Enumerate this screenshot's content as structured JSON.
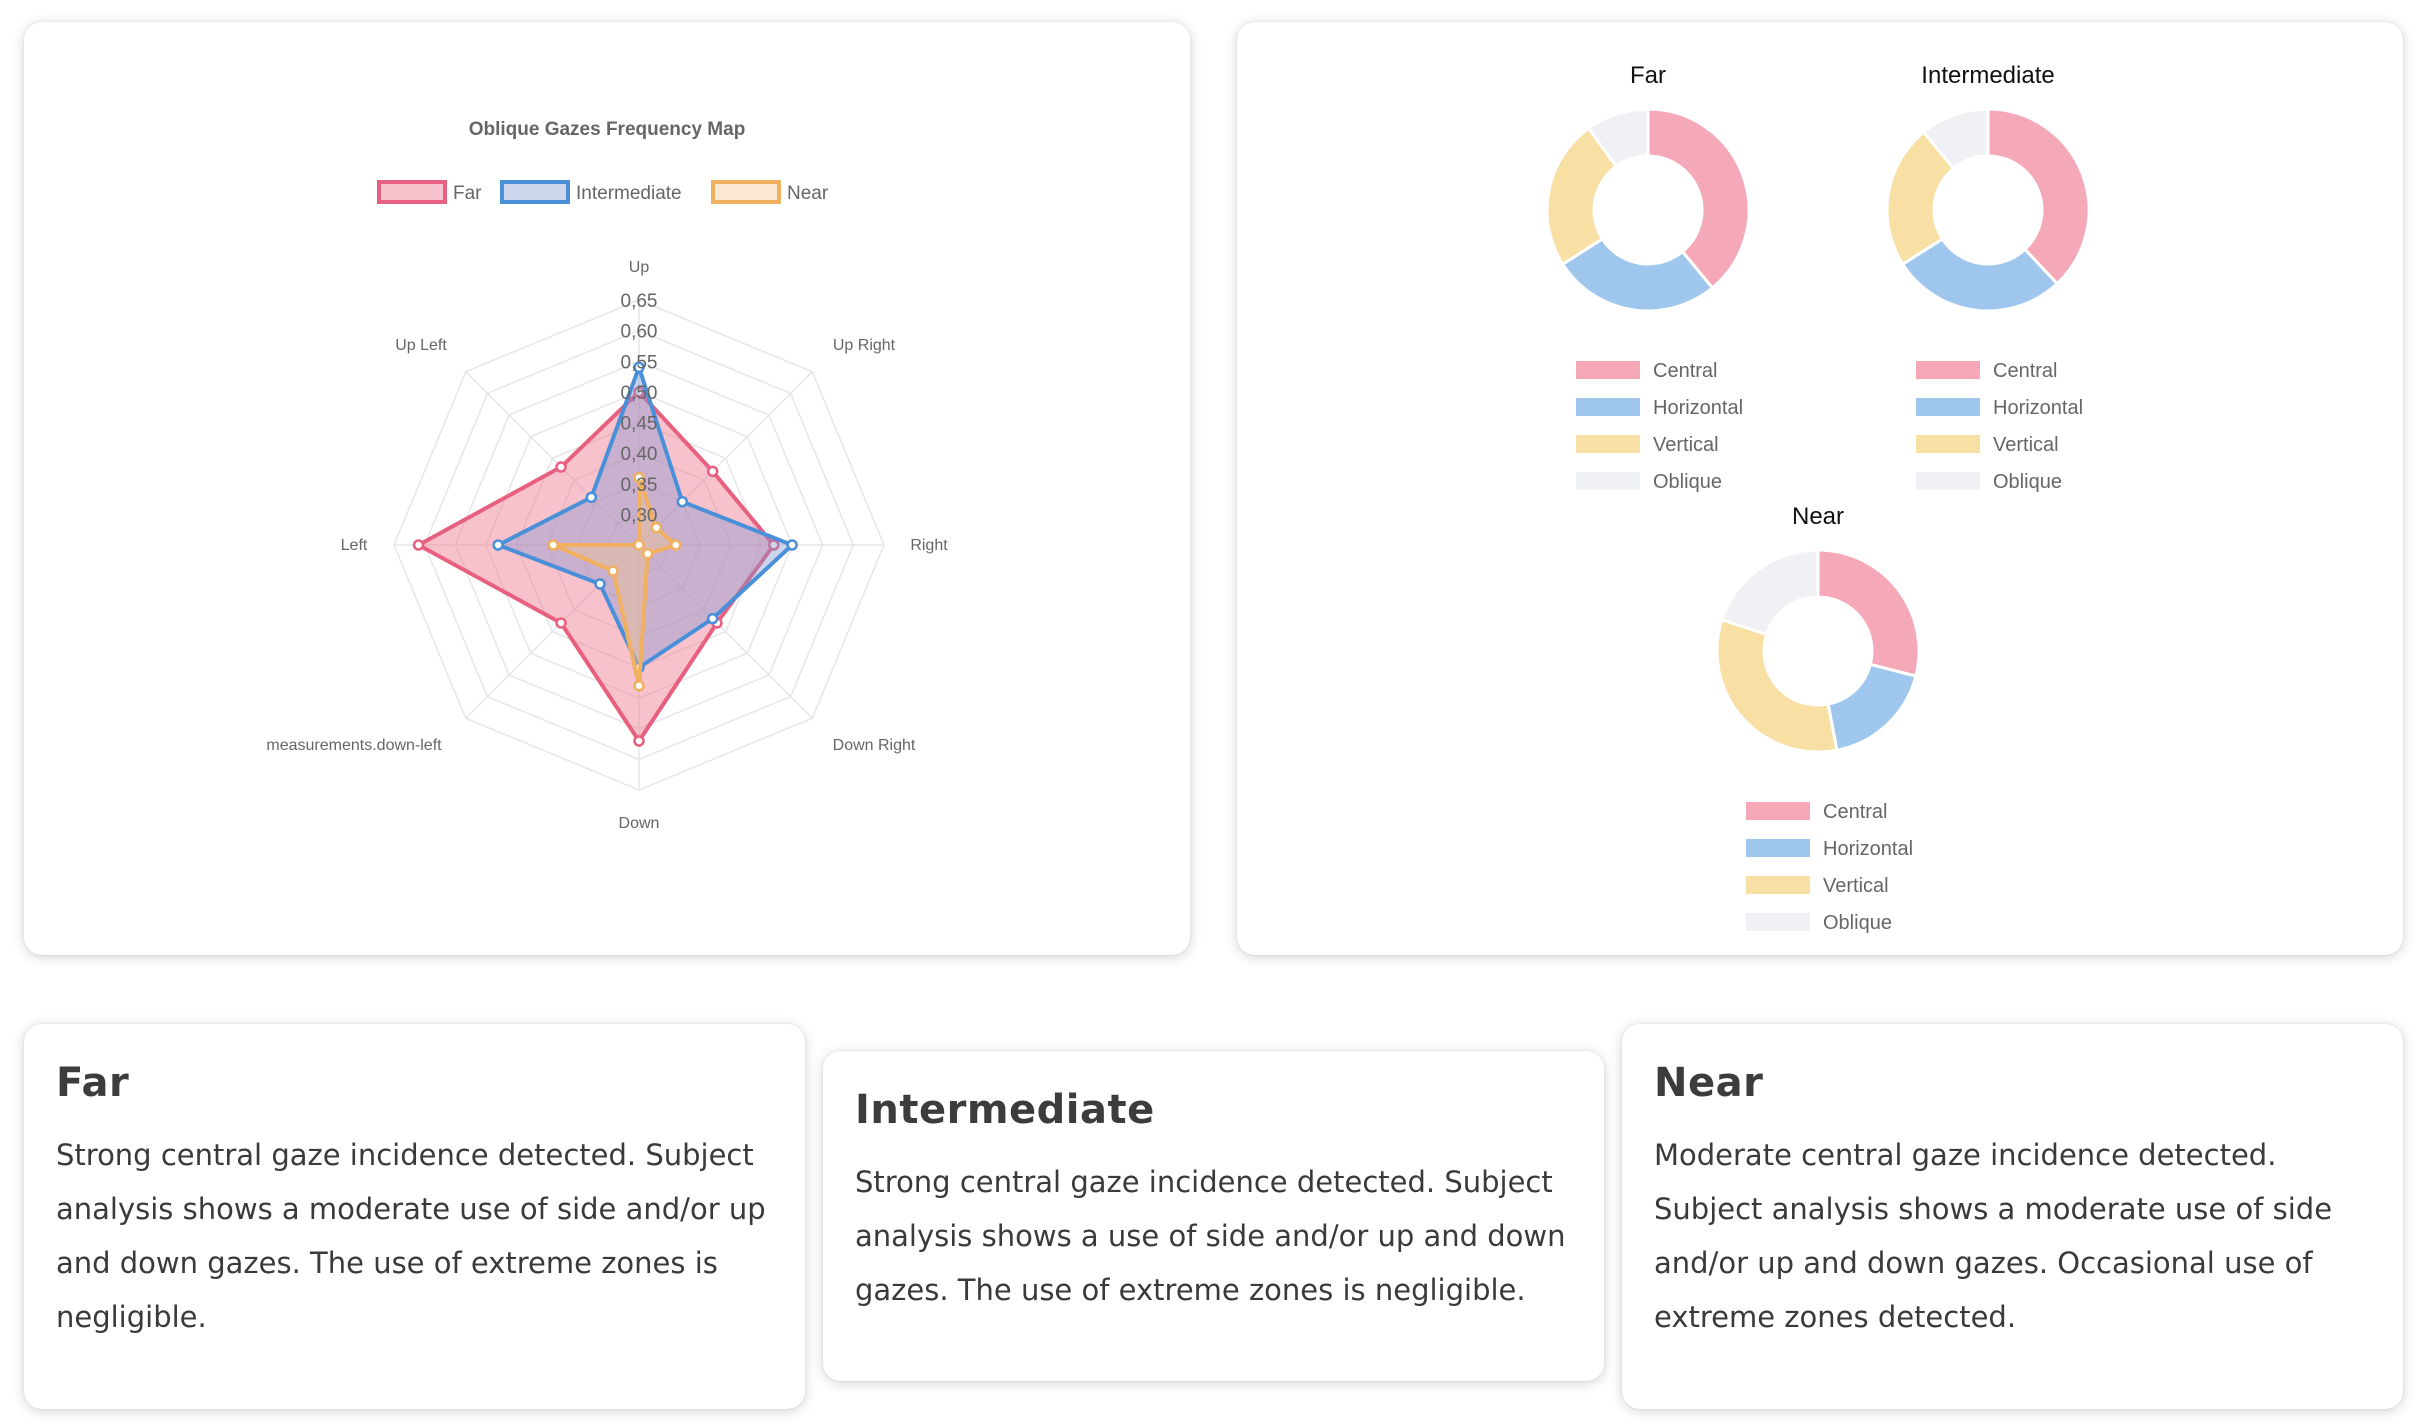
{
  "chart_data": [
    {
      "type": "radar",
      "title": "Oblique Gazes Frequency Map",
      "labels": [
        "Up",
        "Up Right",
        "Right",
        "Down Right",
        "Down",
        "measurements.down-left",
        "Left",
        "Up Left"
      ],
      "r_min": 0.25,
      "r_max": 0.65,
      "ticks": [
        "0,30",
        "0,35",
        "0,40",
        "0,45",
        "0,50",
        "0,55",
        "0,60",
        "0,65"
      ],
      "tick_values": [
        0.3,
        0.35,
        0.4,
        0.45,
        0.5,
        0.55,
        0.6,
        0.65
      ],
      "legend_position": "top",
      "grid": true,
      "series": [
        {
          "name": "Far",
          "color": "#e8607f",
          "fill": "rgba(240,120,145,0.45)",
          "values": [
            0.5,
            0.42,
            0.47,
            0.43,
            0.57,
            0.43,
            0.61,
            0.43
          ]
        },
        {
          "name": "Intermediate",
          "color": "#4a90d9",
          "fill": "rgba(130,150,210,0.40)",
          "values": [
            0.54,
            0.35,
            0.5,
            0.42,
            0.45,
            0.34,
            0.48,
            0.36
          ]
        },
        {
          "name": "Near",
          "color": "#f0b060",
          "fill": "rgba(245,200,140,0.40)",
          "values": [
            0.36,
            0.29,
            0.31,
            0.27,
            0.48,
            0.31,
            0.39,
            0.25
          ]
        }
      ]
    },
    {
      "type": "pie",
      "variant": "doughnut",
      "title": "Far",
      "labels": [
        "Central",
        "Horizontal",
        "Vertical",
        "Oblique"
      ],
      "colors": [
        "#f4a8b8",
        "#9fc7ee",
        "#f8e0a4",
        "#f0f1f4"
      ],
      "values": [
        39,
        27,
        24,
        10
      ]
    },
    {
      "type": "pie",
      "variant": "doughnut",
      "title": "Intermediate",
      "labels": [
        "Central",
        "Horizontal",
        "Vertical",
        "Oblique"
      ],
      "colors": [
        "#f4a8b8",
        "#9fc7ee",
        "#f8e0a4",
        "#f0f1f4"
      ],
      "values": [
        38,
        28,
        23,
        11
      ]
    },
    {
      "type": "pie",
      "variant": "doughnut",
      "title": "Near",
      "labels": [
        "Central",
        "Horizontal",
        "Vertical",
        "Oblique"
      ],
      "colors": [
        "#f4a8b8",
        "#9fc7ee",
        "#f8e0a4",
        "#f0f1f4"
      ],
      "values": [
        29,
        18,
        33,
        20
      ]
    }
  ],
  "summaries": [
    {
      "title": "Far",
      "text": "Strong central gaze incidence detected. Subject analysis shows a moderate use of side and/or up and down gazes. The use of extreme zones is negligible."
    },
    {
      "title": "Intermediate",
      "text": "Strong central gaze incidence detected. Subject analysis shows a use of side and/or up and down gazes. The use of extreme zones is negligible."
    },
    {
      "title": "Near",
      "text": "Moderate central gaze incidence detected. Subject analysis shows a moderate use of side and/or up and down gazes. Occasional use of extreme zones detected."
    }
  ]
}
